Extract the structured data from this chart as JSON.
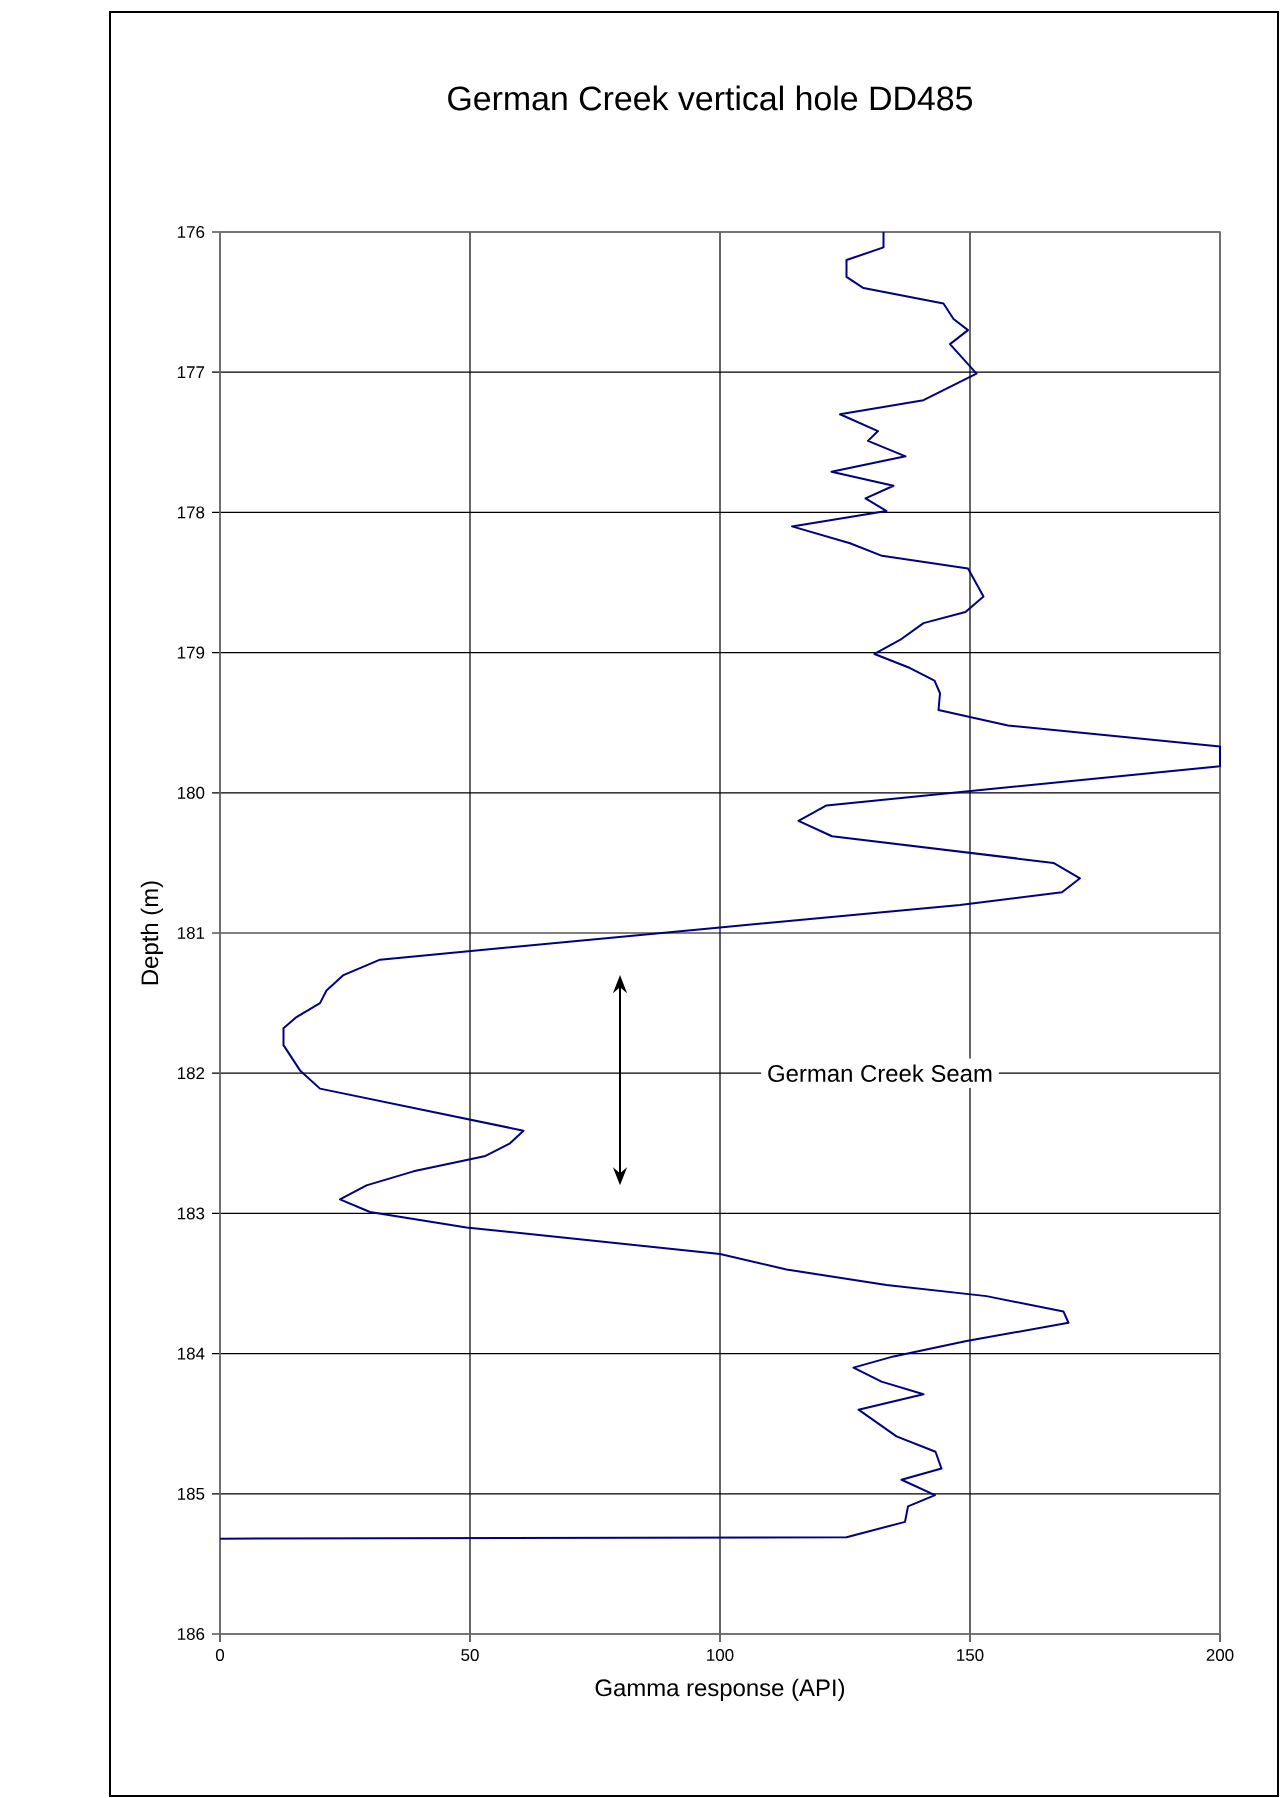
{
  "chart_data": {
    "type": "line",
    "title": "German Creek vertical hole DD485",
    "xlabel": "Gamma response (API)",
    "ylabel": "Depth (m)",
    "xlim": [
      0,
      200
    ],
    "xticks": [
      0,
      50,
      100,
      150,
      200
    ],
    "ylim": [
      186,
      176
    ],
    "yticks": [
      176,
      177,
      178,
      179,
      180,
      181,
      182,
      183,
      184,
      185,
      186
    ],
    "grid": true,
    "annotations": [
      "German Creek Seam"
    ],
    "series": [
      {
        "color": "#000080",
        "x": [
          132.7,
          132.7,
          125.3,
          125.3,
          128.7,
          144.7,
          146.7,
          149.6,
          146,
          151.3,
          140.7,
          124,
          131.6,
          129.6,
          137.1,
          122.3,
          134.7,
          129.1,
          133.3,
          114.4,
          126,
          132.4,
          149.6,
          152.7,
          149.1,
          140.7,
          136,
          130.9,
          138,
          142.9,
          144,
          143.7,
          157.6,
          200,
          200,
          121.3,
          115.7,
          122.4,
          166.7,
          172,
          168.4,
          148,
          100,
          32,
          24.7,
          21.3,
          20,
          15.3,
          12.7,
          12.7,
          16,
          20,
          60.7,
          58,
          53.1,
          38.7,
          29.3,
          24,
          30,
          49.3,
          100,
          113.3,
          133.3,
          153.3,
          168.7,
          169.7,
          149.3,
          134.7,
          126.7,
          132.3,
          140.7,
          127.7,
          135.3,
          143.1,
          144.3,
          136.3,
          143,
          137.6,
          137,
          125.3,
          0
        ],
        "values": [
          176.0,
          176.11,
          176.2,
          176.32,
          176.4,
          176.51,
          176.62,
          176.7,
          176.8,
          177.01,
          177.2,
          177.3,
          177.42,
          177.49,
          177.6,
          177.71,
          177.81,
          177.9,
          177.99,
          178.1,
          178.22,
          178.31,
          178.4,
          178.6,
          178.71,
          178.79,
          178.91,
          179.01,
          179.11,
          179.2,
          179.29,
          179.41,
          179.52,
          179.67,
          179.81,
          180.09,
          180.2,
          180.31,
          180.5,
          180.61,
          180.71,
          180.8,
          180.96,
          181.19,
          181.3,
          181.41,
          181.5,
          181.6,
          181.68,
          181.8,
          181.98,
          182.11,
          182.41,
          182.5,
          182.59,
          182.7,
          182.8,
          182.9,
          182.99,
          183.1,
          183.29,
          183.4,
          183.51,
          183.59,
          183.7,
          183.78,
          183.91,
          184.02,
          184.1,
          184.2,
          184.29,
          184.4,
          184.59,
          184.7,
          184.82,
          184.9,
          185.01,
          185.09,
          185.2,
          185.31,
          185.32
        ]
      }
    ]
  }
}
